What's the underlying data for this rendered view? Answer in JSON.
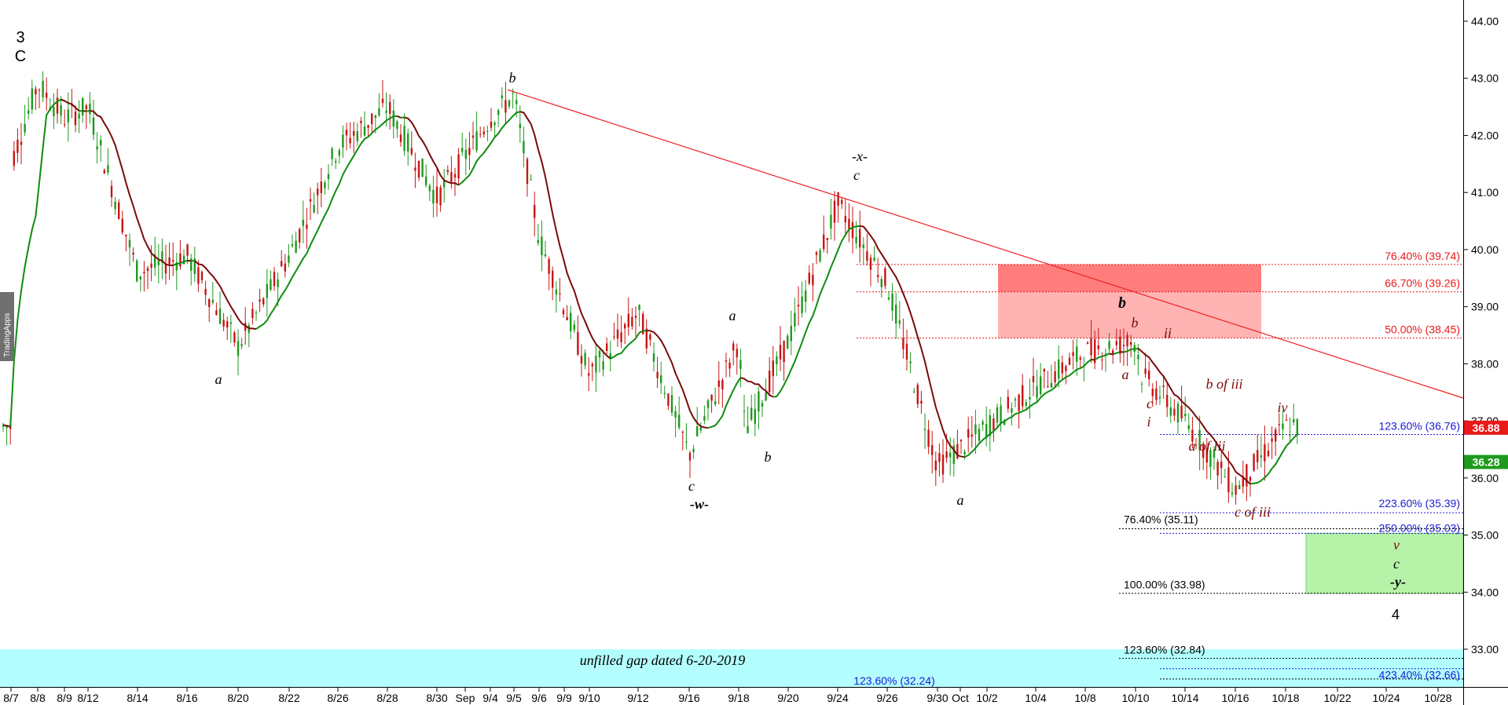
{
  "chart_data": {
    "type": "candlestick",
    "x_ticks": [
      "8/7",
      "8/8",
      "8/9",
      "8/12",
      "8/14",
      "8/16",
      "8/20",
      "8/22",
      "8/26",
      "8/28",
      "8/30",
      "Sep",
      "9/4",
      "9/5",
      "9/6",
      "9/9",
      "9/10",
      "9/12",
      "9/16",
      "9/18",
      "9/20",
      "9/24",
      "9/26",
      "9/30",
      "Oct",
      "10/2",
      "10/4",
      "10/8",
      "10/10",
      "10/14",
      "10/16",
      "10/18",
      "10/22",
      "10/24",
      "10/28"
    ],
    "y_ticks": [
      "44.00",
      "43.00",
      "42.00",
      "41.00",
      "40.00",
      "39.00",
      "38.00",
      "37.00",
      "36.00",
      "35.00",
      "34.00",
      "33.00"
    ],
    "ylim": [
      32.7,
      44.3
    ],
    "price_path": [
      [
        "8/7",
        41.5
      ],
      [
        "8/8",
        42.9
      ],
      [
        "8/9",
        42.3
      ],
      [
        "8/12",
        42.5
      ],
      [
        "8/14",
        39.6
      ],
      [
        "8/16",
        39.9
      ],
      [
        "8/20",
        38.3
      ],
      [
        "8/22",
        39.9
      ],
      [
        "8/26",
        41.8
      ],
      [
        "8/28",
        42.5
      ],
      [
        "8/30",
        40.9
      ],
      [
        "9/4",
        42.3
      ],
      [
        "9/5",
        42.7
      ],
      [
        "9/6",
        40.2
      ],
      [
        "9/10",
        37.8
      ],
      [
        "9/12",
        38.9
      ],
      [
        "9/16",
        36.4
      ],
      [
        "9/18",
        38.4
      ],
      [
        "9/18",
        36.8
      ],
      [
        "9/20",
        38.4
      ],
      [
        "9/24",
        40.8
      ],
      [
        "9/26",
        39.4
      ],
      [
        "9/30",
        36.2
      ],
      [
        "10/4",
        37.6
      ],
      [
        "10/8",
        38.2
      ],
      [
        "10/10",
        38.4
      ],
      [
        "10/10",
        37.8
      ],
      [
        "10/14",
        37.0
      ],
      [
        "10/16",
        35.8
      ],
      [
        "10/18",
        36.9
      ]
    ],
    "current_price": "36.88",
    "ma_price": "36.28",
    "trendline": [
      [
        "9/5",
        42.8
      ],
      [
        "10/28",
        37.4
      ]
    ],
    "fib_levels": [
      {
        "label": "76.40% (39.74)",
        "value": 39.74,
        "color": "#e81a1a"
      },
      {
        "label": "66.70% (39.26)",
        "value": 39.26,
        "color": "#e81a1a"
      },
      {
        "label": "50.00% (38.45)",
        "value": 38.45,
        "color": "#e81a1a"
      },
      {
        "label": "123.60% (36.76)",
        "value": 36.76,
        "color": "#1a1ad6"
      },
      {
        "label": "223.60% (35.39)",
        "value": 35.39,
        "color": "#1a1ad6"
      },
      {
        "label": "250.00% (35.03)",
        "value": 35.03,
        "color": "#1a1ad6"
      },
      {
        "label": "76.40% (35.11)",
        "value": 35.11,
        "color": "#000000"
      },
      {
        "label": "100.00% (33.98)",
        "value": 33.98,
        "color": "#000000"
      },
      {
        "label": "123.60% (32.84)",
        "value": 32.84,
        "color": "#000000"
      },
      {
        "label": "423.40% (32.66)",
        "value": 32.66,
        "color": "#1a1ad6"
      }
    ],
    "extra_label": "123.60% (32.24)",
    "resistance_zone": [
      38.45,
      39.74
    ],
    "target_zone": [
      33.98,
      35.03
    ],
    "gap_label": "unfilled gap dated 6-20-2019",
    "wave_labels": [
      "3",
      "C",
      "b",
      "a",
      "a",
      "b",
      "c",
      "-w-",
      "-x-",
      "c",
      "b",
      "a",
      "a",
      "b",
      "ii",
      "c",
      "i",
      "b of iii",
      "a of iii",
      "iv",
      "c of iii",
      "v",
      "c",
      "-y-",
      "4"
    ],
    "watermark": "TradingApps"
  },
  "colors": {
    "up": "#1e9a1e",
    "down": "#c81414",
    "ma_green": "#0f8c0f",
    "ma_dark": "#7a0a0a",
    "trend": "#ef2020"
  }
}
